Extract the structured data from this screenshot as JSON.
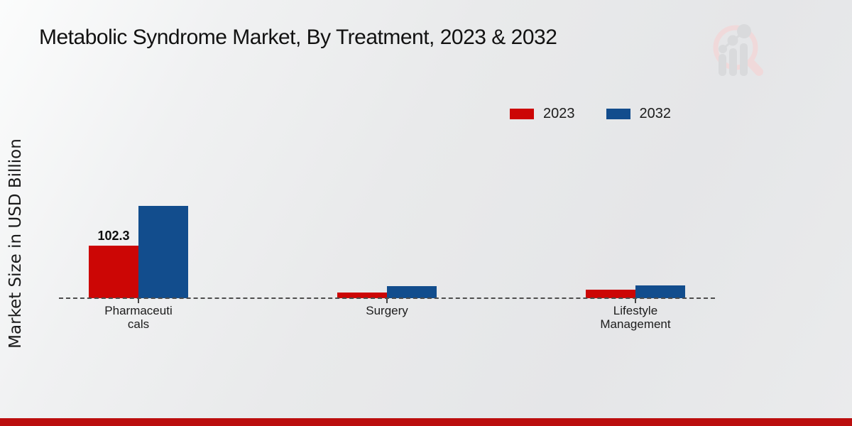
{
  "title": "Metabolic Syndrome Market, By Treatment, 2023 & 2032",
  "y_axis_label": "Market Size in USD Billion",
  "legend": {
    "items": [
      {
        "label": "2023",
        "color": "#cc0605"
      },
      {
        "label": "2032",
        "color": "#124d8d"
      }
    ]
  },
  "colors": {
    "series_2023": "#cc0605",
    "series_2032": "#124d8d",
    "baseline_dash": "#4d4d4d",
    "bottom_banner": "#bb0e0e",
    "watermark_pink": "#f0d9da",
    "watermark_gray": "#d9dadc"
  },
  "watermark_icon": "market-research-magnifier-logo",
  "chart_data": {
    "type": "bar",
    "title": "Metabolic Syndrome Market, By Treatment, 2023 & 2032",
    "xlabel": "",
    "ylabel": "Market Size in USD Billion",
    "categories": [
      "Pharmaceuticals",
      "Surgery",
      "Lifestyle Management"
    ],
    "category_label_lines": [
      [
        "Pharmaceuti",
        "cals"
      ],
      [
        "Surgery"
      ],
      [
        "Lifestyle",
        "Management"
      ]
    ],
    "series": [
      {
        "name": "2023",
        "color": "#cc0605",
        "values": [
          102.3,
          11.8,
          16.5
        ]
      },
      {
        "name": "2032",
        "color": "#124d8d",
        "values": [
          179.8,
          23.5,
          25.5
        ]
      }
    ],
    "annotations": [
      {
        "series_index": 0,
        "category_index": 0,
        "text": "102.3"
      }
    ],
    "baseline_value": 0,
    "grid": false,
    "legend_position": "top-right"
  }
}
